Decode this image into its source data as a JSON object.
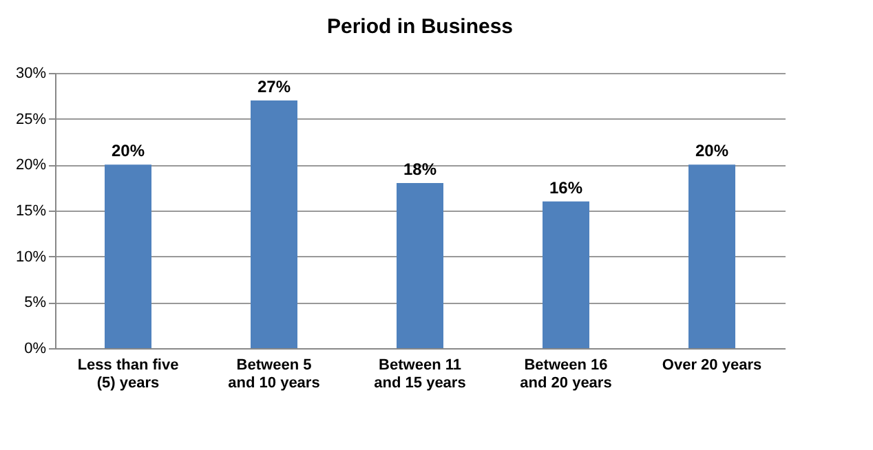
{
  "chart_data": {
    "type": "bar",
    "title": "Period in Business",
    "categories": [
      "Less than five (5) years",
      "Between 5 and 10 years",
      "Between 11 and 15 years",
      "Between 16 and 20 years",
      "Over 20 years"
    ],
    "values": [
      20,
      27,
      18,
      16,
      20
    ],
    "value_labels": [
      "20%",
      "27%",
      "18%",
      "16%",
      "20%"
    ],
    "color": "#4f81bd",
    "ylim": [
      0,
      30
    ],
    "yticks": [
      {
        "value": 0,
        "label": "0%"
      },
      {
        "value": 5,
        "label": "5%"
      },
      {
        "value": 10,
        "label": "10%"
      },
      {
        "value": 15,
        "label": "15%"
      },
      {
        "value": 20,
        "label": "20%"
      },
      {
        "value": 25,
        "label": "25%"
      },
      {
        "value": 30,
        "label": "30%"
      }
    ],
    "grid": "y"
  }
}
